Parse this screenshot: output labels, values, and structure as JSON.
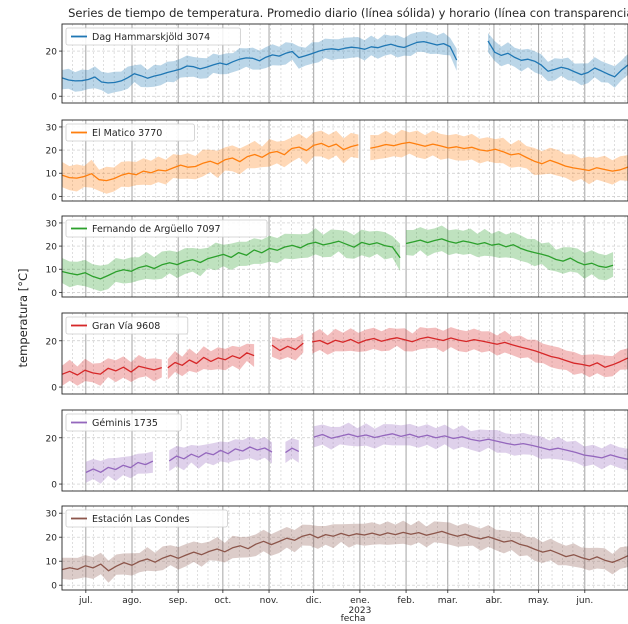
{
  "chart_data": {
    "type": "line",
    "title": "Series de tiempo de temperatura. Promedio diario (línea sólida) y horario (línea con transparencia)",
    "xlabel": "fecha",
    "ylabel": "temperatura [°C]",
    "x_range": [
      "2022-06-15",
      "2023-06-30"
    ],
    "x_ticks": [
      {
        "date": "2022-07-01",
        "label": "jul."
      },
      {
        "date": "2022-08-01",
        "label": "ago."
      },
      {
        "date": "2022-09-01",
        "label": "sep."
      },
      {
        "date": "2022-10-01",
        "label": "oct."
      },
      {
        "date": "2022-11-01",
        "label": "nov."
      },
      {
        "date": "2022-12-01",
        "label": "dic."
      },
      {
        "date": "2023-01-01",
        "label": "ene."
      },
      {
        "date": "2023-02-01",
        "label": "feb."
      },
      {
        "date": "2023-03-01",
        "label": "mar."
      },
      {
        "date": "2023-04-01",
        "label": "abr."
      },
      {
        "date": "2023-05-01",
        "label": "may."
      },
      {
        "date": "2023-06-01",
        "label": "jun."
      }
    ],
    "year_label": {
      "date": "2023-01-01",
      "label": "2023"
    },
    "grid": true,
    "legend_position": "top-left",
    "panels": [
      {
        "name": "Dag Hammarskjöld 3074",
        "color": "#1f77b4",
        "yticks": [
          0,
          20
        ],
        "ylim": [
          -3,
          32
        ],
        "segments": [
          {
            "start": "2022-06-15",
            "end": "2023-03-07",
            "daily": [
              8.1,
              7.2,
              6.8,
              6.9,
              7.4,
              8.5,
              6.3,
              5.9,
              6.1,
              6.8,
              8.2,
              10.0,
              9.1,
              8.0,
              8.9,
              9.6,
              10.5,
              11.2,
              12.0,
              13.4,
              13.1,
              12.1,
              12.9,
              13.9,
              14.7,
              14.0,
              15.3,
              16.4,
              17.0,
              16.8,
              15.7,
              17.3,
              18.3,
              17.8,
              19.0,
              19.8,
              17.1,
              17.9,
              18.9,
              19.9,
              20.7,
              21.0,
              20.6,
              21.3,
              21.7,
              21.4,
              20.8,
              21.9,
              21.5,
              22.4,
              23.0,
              22.1,
              21.6,
              22.8,
              23.9,
              24.2,
              23.5,
              22.7,
              23.3,
              22.0,
              16.0
            ]
          },
          {
            "start": "2023-03-28",
            "end": "2023-06-30",
            "daily": [
              24.5,
              19.5,
              18.1,
              19.0,
              17.2,
              15.9,
              16.4,
              15.5,
              13.8,
              11.1,
              11.9,
              12.8,
              12.1,
              10.8,
              9.6,
              10.5,
              12.5,
              11.2,
              9.8,
              8.6,
              11.5,
              13.9
            ]
          }
        ],
        "hourly_band": 5
      },
      {
        "name": "El Matico 3770",
        "color": "#ff7f0e",
        "yticks": [
          0,
          10,
          20,
          30
        ],
        "ylim": [
          -2,
          33
        ],
        "segments": [
          {
            "start": "2022-06-15",
            "end": "2022-12-31",
            "daily": [
              9.2,
              8.1,
              7.9,
              8.6,
              9.8,
              7.2,
              6.8,
              7.7,
              9.1,
              10.0,
              9.3,
              10.9,
              10.2,
              11.4,
              11.0,
              12.3,
              13.5,
              12.6,
              12.9,
              14.3,
              15.2,
              14.0,
              15.8,
              16.6,
              15.0,
              17.2,
              18.1,
              16.9,
              18.8,
              19.4,
              18.0,
              20.7,
              21.3,
              19.8,
              22.1,
              22.9,
              21.4,
              22.6,
              20.2,
              21.5,
              22.3
            ]
          },
          {
            "start": "2023-01-08",
            "end": "2023-06-30",
            "daily": [
              20.8,
              21.5,
              22.4,
              21.9,
              22.8,
              23.3,
              22.5,
              21.7,
              22.6,
              21.8,
              20.9,
              21.4,
              20.7,
              21.2,
              20.1,
              19.6,
              20.4,
              19.3,
              17.9,
              18.5,
              16.8,
              15.2,
              14.1,
              15.6,
              14.4,
              13.1,
              12.3,
              11.8,
              11.2,
              12.4,
              11.6,
              10.9,
              11.5,
              12.7
            ]
          }
        ],
        "hourly_band": 6
      },
      {
        "name": "Fernando de Argüello 7097",
        "color": "#2ca02c",
        "yticks": [
          0,
          10,
          20,
          30
        ],
        "ylim": [
          -2,
          33
        ],
        "segments": [
          {
            "start": "2022-06-15",
            "end": "2023-01-28",
            "daily": [
              9.0,
              8.2,
              7.6,
              8.5,
              6.9,
              5.8,
              7.3,
              8.9,
              9.8,
              9.1,
              10.7,
              11.5,
              10.3,
              11.9,
              12.8,
              12.0,
              13.4,
              14.1,
              12.9,
              14.6,
              15.5,
              16.4,
              15.1,
              17.2,
              16.0,
              18.3,
              17.1,
              19.0,
              18.2,
              19.6,
              20.3,
              19.2,
              20.9,
              21.7,
              20.5,
              21.2,
              22.1,
              20.8,
              19.5,
              21.6,
              20.7,
              21.4,
              20.2,
              19.6,
              15.0
            ]
          },
          {
            "start": "2023-02-01",
            "end": "2023-06-20",
            "daily": [
              21.1,
              21.8,
              22.6,
              21.5,
              22.4,
              23.1,
              22.0,
              21.3,
              22.2,
              21.6,
              20.8,
              21.5,
              20.4,
              20.9,
              19.7,
              20.6,
              19.1,
              18.0,
              17.2,
              16.5,
              15.6,
              14.2,
              13.5,
              14.8,
              13.1,
              11.9,
              12.6,
              11.3,
              10.8,
              11.7
            ]
          }
        ],
        "hourly_band": 6
      },
      {
        "name": "Gran Vía 9608",
        "color": "#d62728",
        "yticks": [
          0,
          20
        ],
        "ylim": [
          -3,
          32
        ],
        "segments": [
          {
            "start": "2022-06-15",
            "end": "2022-08-21",
            "daily": [
              5.5,
              6.8,
              5.2,
              7.3,
              6.1,
              5.6,
              8.1,
              7.0,
              8.6,
              6.5,
              9.0,
              8.2,
              7.4,
              8.4
            ]
          },
          {
            "start": "2022-08-25",
            "end": "2022-10-22",
            "daily": [
              8.3,
              10.6,
              9.4,
              11.7,
              10.2,
              12.8,
              11.1,
              12.6,
              11.8,
              13.5,
              12.4,
              14.8,
              13.6
            ]
          },
          {
            "start": "2022-11-03",
            "end": "2022-11-24",
            "daily": [
              18.1,
              15.8,
              17.6,
              16.2,
              19.0
            ]
          },
          {
            "start": "2022-11-30",
            "end": "2023-06-30",
            "daily": [
              19.5,
              20.1,
              18.6,
              20.2,
              19.4,
              20.6,
              19.0,
              20.3,
              21.0,
              19.8,
              20.7,
              21.3,
              20.4,
              19.6,
              20.9,
              21.6,
              20.8,
              20.1,
              21.2,
              20.3,
              19.7,
              20.5,
              19.9,
              19.2,
              18.5,
              19.3,
              18.2,
              17.3,
              16.5,
              15.6,
              14.4,
              13.2,
              12.5,
              11.4,
              10.3,
              9.8,
              9.1,
              10.5,
              8.6,
              9.6,
              11.0,
              12.6
            ]
          }
        ],
        "hourly_band": 5
      },
      {
        "name": "Géminis 1735",
        "color": "#9467bd",
        "yticks": [
          0,
          20
        ],
        "ylim": [
          -3,
          32
        ],
        "segments": [
          {
            "start": "2022-07-01",
            "end": "2022-08-15",
            "daily": [
              5.0,
              6.5,
              5.1,
              7.2,
              6.3,
              8.1,
              7.1,
              9.3,
              8.4,
              9.9
            ]
          },
          {
            "start": "2022-08-26",
            "end": "2022-11-03",
            "daily": [
              10.0,
              12.1,
              10.9,
              12.9,
              11.6,
              13.5,
              12.7,
              14.6,
              13.1,
              15.2,
              14.3,
              16.0,
              14.7,
              15.6,
              13.8
            ]
          },
          {
            "start": "2022-11-12",
            "end": "2022-11-21",
            "daily": [
              13.6,
              15.5,
              14.1
            ]
          },
          {
            "start": "2022-12-01",
            "end": "2023-06-30",
            "daily": [
              20.3,
              21.4,
              19.8,
              20.7,
              21.6,
              20.5,
              21.2,
              20.1,
              21.0,
              21.7,
              20.6,
              21.5,
              20.3,
              21.1,
              20.0,
              20.8,
              19.7,
              20.4,
              19.3,
              18.6,
              19.4,
              18.5,
              17.6,
              16.9,
              17.5,
              16.7,
              15.8,
              14.8,
              15.5,
              14.6,
              13.7,
              12.5,
              12.0,
              11.3,
              12.6,
              11.5,
              10.7
            ]
          }
        ],
        "hourly_band": 5
      },
      {
        "name": "Estación Las Condes",
        "color": "#8c564b",
        "yticks": [
          0,
          10,
          20,
          30
        ],
        "ylim": [
          -2,
          33
        ],
        "segments": [
          {
            "start": "2022-06-15",
            "end": "2023-06-30",
            "daily": [
              6.5,
              7.3,
              6.6,
              8.1,
              7.2,
              8.8,
              6.0,
              7.9,
              9.4,
              8.3,
              9.9,
              10.9,
              9.6,
              11.3,
              12.4,
              11.2,
              12.6,
              13.8,
              12.7,
              14.1,
              15.1,
              13.9,
              15.6,
              16.4,
              15.2,
              17.1,
              18.3,
              16.9,
              18.2,
              19.6,
              18.7,
              20.4,
              21.2,
              19.7,
              21.1,
              20.4,
              21.6,
              20.6,
              21.4,
              20.9,
              21.7,
              20.8,
              21.8,
              21.1,
              22.0,
              21.2,
              21.9,
              20.8,
              21.6,
              22.4,
              21.3,
              20.4,
              21.2,
              20.1,
              19.3,
              20.2,
              19.1,
              18.0,
              18.6,
              17.1,
              16.3,
              14.9,
              13.8,
              14.6,
              13.3,
              11.9,
              12.7,
              11.5,
              10.6,
              11.8,
              10.4,
              9.5,
              10.8,
              12.3
            ]
          }
        ],
        "hourly_band": 5
      }
    ]
  }
}
